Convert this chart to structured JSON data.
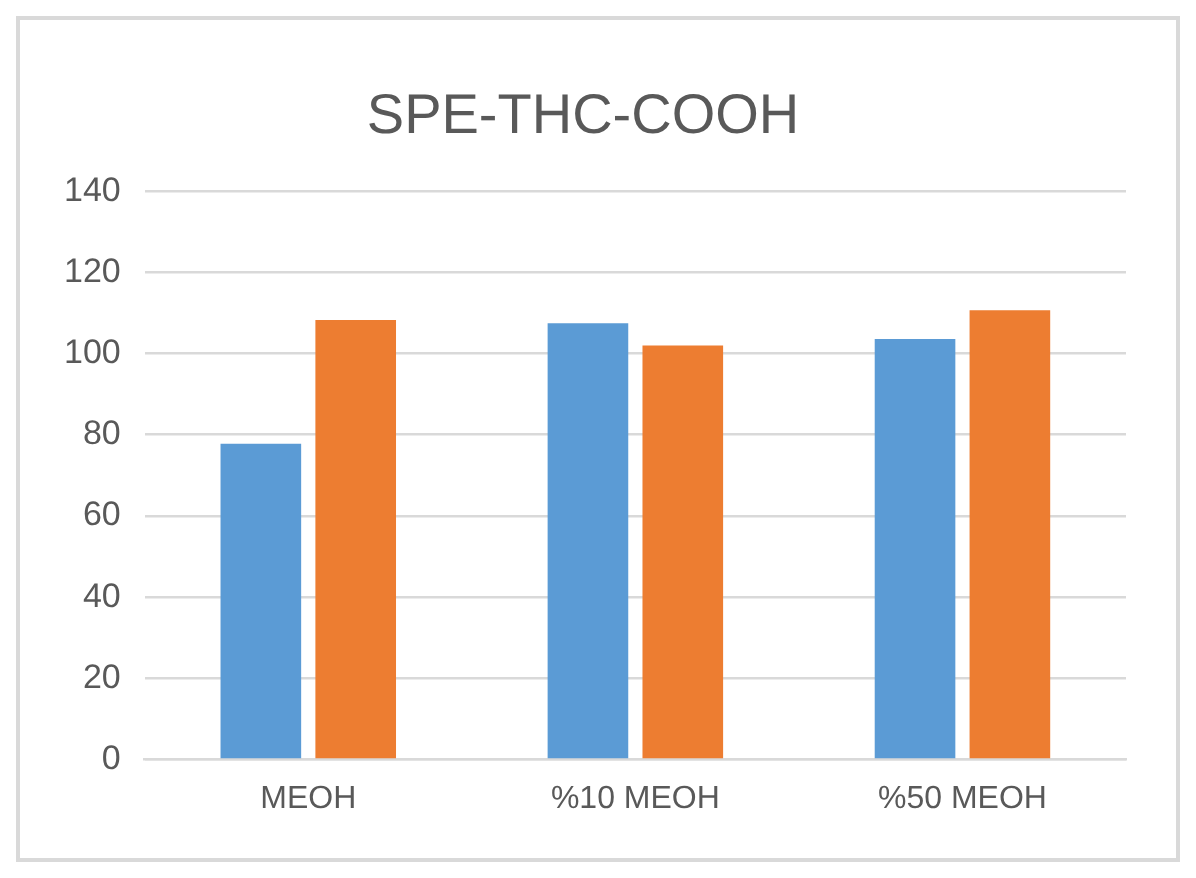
{
  "chart_data": {
    "type": "bar",
    "title": "SPE-THC-COOH",
    "categories": [
      "MEOH",
      "%10 MEOH",
      "%50 MEOH"
    ],
    "series": [
      {
        "color": "#5b9bd5",
        "values": [
          77.8,
          107.5,
          103.6
        ]
      },
      {
        "color": "#ed7d31",
        "values": [
          108.3,
          102,
          110.7
        ]
      }
    ],
    "ylim": [
      0,
      140
    ],
    "yticks": [
      0,
      20,
      40,
      60,
      80,
      100,
      120,
      140
    ],
    "grid": "y",
    "legend": false
  }
}
